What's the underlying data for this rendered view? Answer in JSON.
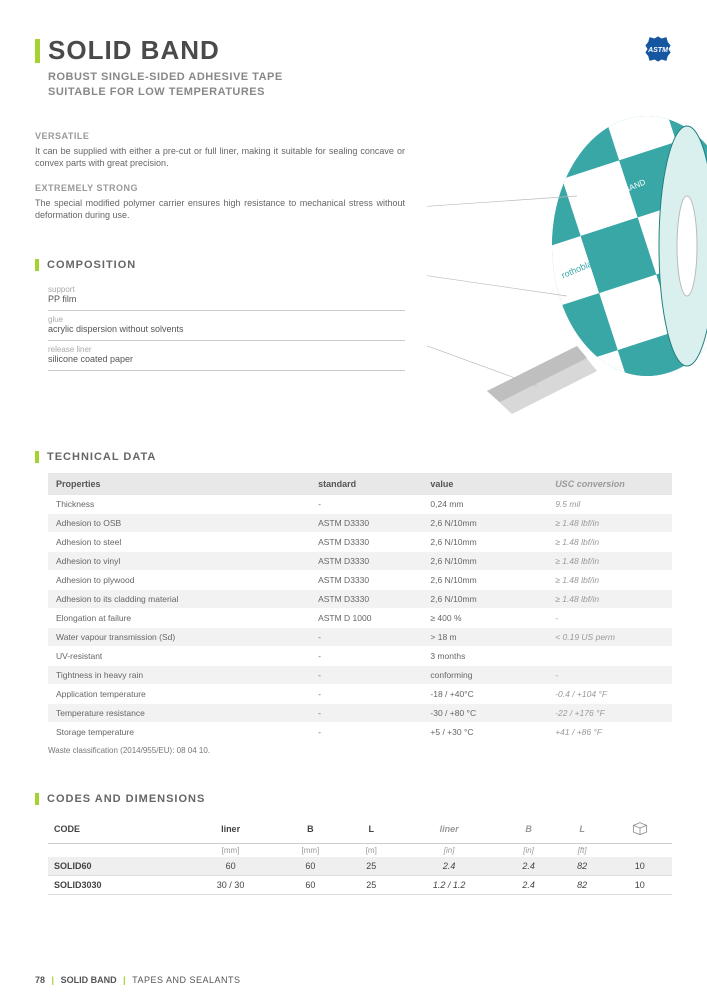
{
  "header": {
    "title": "SOLID BAND",
    "subtitle_l1": "ROBUST SINGLE-SIDED ADHESIVE TAPE",
    "subtitle_l2": "SUITABLE FOR LOW TEMPERATURES",
    "badge_label": "ASTM"
  },
  "features": [
    {
      "title": "VERSATILE",
      "text": "It can be supplied with either a pre-cut or full liner, making it suitable for sealing concave or convex parts with great precision."
    },
    {
      "title": "EXTREMELY STRONG",
      "text": "The special modified polymer carrier ensures high resistance to mechanical stress without deformation during use."
    }
  ],
  "composition": {
    "heading": "COMPOSITION",
    "items": [
      {
        "label": "support",
        "value": "PP film"
      },
      {
        "label": "glue",
        "value": "acrylic dispersion without solvents"
      },
      {
        "label": "release liner",
        "value": "silicone coated paper"
      }
    ]
  },
  "product_image": {
    "brand_text": "rothoblaas",
    "product_text": "SOLID BAND",
    "colors": {
      "teal": "#3aa7a7",
      "white": "#ffffff",
      "edge": "#22807f",
      "grey": "#cfcfcf"
    }
  },
  "technical": {
    "heading": "TECHNICAL DATA",
    "columns": [
      "Properties",
      "standard",
      "value",
      "USC conversion"
    ],
    "rows": [
      {
        "p": "Thickness",
        "s": "-",
        "v": "0,24 mm",
        "u": "9.5 mil"
      },
      {
        "p": "Adhesion to OSB",
        "s": "ASTM D3330",
        "v": "2,6 N/10mm",
        "u": "≥ 1.48 lbf/in"
      },
      {
        "p": "Adhesion to steel",
        "s": "ASTM D3330",
        "v": "2,6 N/10mm",
        "u": "≥ 1.48 lbf/in"
      },
      {
        "p": "Adhesion to vinyl",
        "s": "ASTM D3330",
        "v": "2,6 N/10mm",
        "u": "≥ 1.48 lbf/in"
      },
      {
        "p": "Adhesion to plywood",
        "s": "ASTM D3330",
        "v": "2,6 N/10mm",
        "u": "≥ 1.48 lbf/in"
      },
      {
        "p": "Adhesion to its cladding material",
        "s": "ASTM D3330",
        "v": "2,6 N/10mm",
        "u": "≥ 1.48 lbf/in"
      },
      {
        "p": "Elongation at failure",
        "s": "ASTM D 1000",
        "v": "≥ 400 %",
        "u": "-"
      },
      {
        "p": "Water vapour transmission (Sd)",
        "s": "-",
        "v": "> 18 m",
        "u": "< 0.19 US perm"
      },
      {
        "p": "UV-resistant",
        "s": "-",
        "v": "3 months",
        "u": ""
      },
      {
        "p": "Tightness in heavy rain",
        "s": "-",
        "v": "conforming",
        "u": "-"
      },
      {
        "p": "Application temperature",
        "s": "-",
        "v": "-18 / +40°C",
        "u": "-0.4 / +104 °F"
      },
      {
        "p": "Temperature resistance",
        "s": "-",
        "v": "-30 / +80 °C",
        "u": "-22 / +176 °F"
      },
      {
        "p": "Storage temperature",
        "s": "-",
        "v": "+5 / +30 °C",
        "u": "+41 / +86 °F"
      }
    ],
    "waste_note": "Waste classification (2014/955/EU): 08 04 10."
  },
  "codes": {
    "heading": "CODES AND DIMENSIONS",
    "columns": [
      "CODE",
      "liner",
      "B",
      "L",
      "liner",
      "B",
      "L",
      ""
    ],
    "units": [
      "",
      "[mm]",
      "[mm]",
      "[m]",
      "[in]",
      "[in]",
      "[ft]",
      ""
    ],
    "italic_cols": [
      4,
      5,
      6
    ],
    "rows": [
      {
        "cells": [
          "SOLID60",
          "60",
          "60",
          "25",
          "2.4",
          "2.4",
          "82",
          "10"
        ]
      },
      {
        "cells": [
          "SOLID3030",
          "30 / 30",
          "60",
          "25",
          "1.2 / 1.2",
          "2.4",
          "82",
          "10"
        ]
      }
    ]
  },
  "footer": {
    "page": "78",
    "name": "SOLID BAND",
    "category": "TAPES AND SEALANTS"
  }
}
